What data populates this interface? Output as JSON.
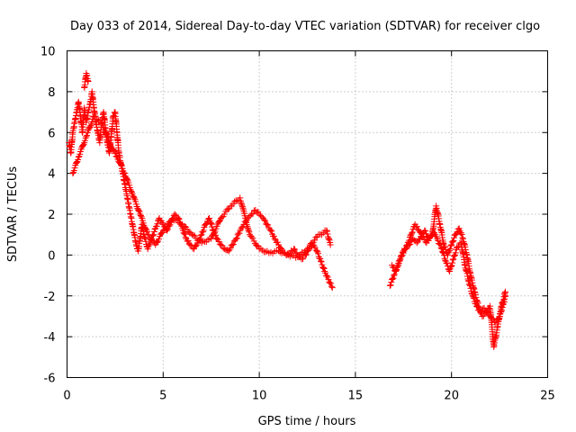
{
  "chart_data": {
    "type": "scatter",
    "title": "Day 033 of 2014, Sidereal Day-to-day VTEC variation (SDTVAR) for receiver clgo",
    "xlabel": "GPS time / hours",
    "ylabel": "SDTVAR / TECUs",
    "xlim": [
      0,
      25
    ],
    "ylim": [
      -6,
      10
    ],
    "xticks": [
      0,
      5,
      10,
      15,
      20,
      25
    ],
    "yticks": [
      -6,
      -4,
      -2,
      0,
      2,
      4,
      6,
      8,
      10
    ],
    "grid": true,
    "marker": "+",
    "color": "#ff0000",
    "series": [
      {
        "name": "SDTVAR",
        "segments": [
          {
            "x": [
              0.1,
              0.2,
              0.3,
              0.4,
              0.5,
              0.6,
              0.7,
              0.8,
              0.9,
              1.0,
              1.1,
              1.2,
              1.3,
              1.4,
              1.5,
              1.6,
              1.7,
              1.8,
              1.9,
              2.0,
              2.1,
              2.2,
              2.3,
              2.4,
              2.5,
              2.6,
              2.7,
              2.8,
              2.9,
              3.0,
              3.1,
              3.2,
              3.3,
              3.4,
              3.5,
              3.6,
              3.7,
              3.8,
              3.9,
              4.0,
              4.2,
              4.4,
              4.6,
              4.8,
              5.0,
              5.2,
              5.4,
              5.6,
              5.8,
              6.0,
              6.2,
              6.4,
              6.6,
              6.8,
              7.0,
              7.2,
              7.4,
              7.6,
              7.8,
              8.0,
              8.2,
              8.4,
              8.6,
              8.8,
              9.0,
              9.2,
              9.4,
              9.6,
              9.8,
              10.0,
              10.2,
              10.4,
              10.6,
              10.8,
              11.0,
              11.2,
              11.4,
              11.6,
              11.8,
              12.0,
              12.2,
              12.4,
              12.6,
              12.8,
              13.0,
              13.2,
              13.4,
              13.6,
              13.8
            ],
            "y": [
              5.5,
              5.0,
              6.0,
              6.5,
              7.0,
              7.5,
              6.8,
              6.0,
              7.2,
              6.5,
              7.0,
              7.4,
              8.0,
              7.2,
              6.5,
              6.0,
              5.5,
              6.5,
              7.0,
              6.2,
              5.5,
              5.0,
              5.8,
              6.8,
              7.0,
              6.0,
              5.0,
              4.5,
              4.0,
              3.5,
              3.0,
              2.5,
              2.0,
              1.5,
              1.0,
              0.5,
              0.2,
              0.8,
              1.5,
              1.0,
              0.3,
              0.8,
              1.3,
              1.8,
              1.5,
              1.2,
              1.6,
              2.0,
              1.8,
              1.3,
              0.8,
              0.5,
              0.3,
              0.6,
              1.0,
              1.5,
              1.8,
              1.2,
              0.8,
              0.5,
              0.3,
              0.2,
              0.5,
              0.8,
              1.2,
              1.5,
              1.8,
              2.0,
              2.2,
              2.0,
              1.8,
              1.5,
              1.2,
              0.8,
              0.5,
              0.2,
              0.0,
              0.1,
              0.3,
              0.0,
              -0.2,
              0.0,
              0.3,
              0.5,
              0.2,
              -0.3,
              -0.8,
              -1.2,
              -1.6
            ]
          },
          {
            "x": [
              0.3,
              0.6,
              1.0,
              1.4,
              1.8,
              2.2,
              2.6,
              3.0,
              3.4,
              3.8,
              4.2,
              4.6,
              5.0,
              5.5,
              6.0,
              6.5,
              7.0,
              7.5,
              8.0,
              8.5,
              9.0,
              9.5,
              10.0,
              10.5,
              11.0,
              11.5,
              12.0,
              12.5,
              13.0,
              13.5,
              13.7
            ],
            "y": [
              4.0,
              4.8,
              5.8,
              6.8,
              6.5,
              5.5,
              4.8,
              4.0,
              3.0,
              2.0,
              1.0,
              0.5,
              1.2,
              1.8,
              1.5,
              1.0,
              0.6,
              0.8,
              1.8,
              2.4,
              2.8,
              1.0,
              0.3,
              0.1,
              0.2,
              0.0,
              -0.1,
              0.3,
              0.9,
              1.2,
              0.5
            ]
          },
          {
            "x": [
              0.9,
              1.0,
              1.1
            ],
            "y": [
              8.2,
              8.9,
              8.5
            ]
          },
          {
            "x": [
              16.8,
              17.0,
              17.2,
              17.4,
              17.6,
              17.8,
              18.0,
              18.2,
              18.4,
              18.6,
              18.8,
              19.0,
              19.2,
              19.4,
              19.6,
              19.8,
              20.0,
              20.2,
              20.4,
              20.6,
              20.8,
              21.0,
              21.2,
              21.4,
              21.6,
              21.8,
              22.0,
              22.2,
              22.4,
              22.6,
              22.8
            ],
            "y": [
              -1.5,
              -1.0,
              -0.5,
              0.0,
              0.3,
              0.5,
              0.8,
              0.6,
              0.9,
              1.2,
              0.8,
              1.0,
              2.4,
              1.5,
              0.5,
              0.0,
              0.5,
              1.0,
              1.3,
              0.8,
              0.0,
              -1.0,
              -1.8,
              -2.5,
              -3.0,
              -2.8,
              -2.5,
              -4.5,
              -3.5,
              -2.5,
              -1.8
            ]
          },
          {
            "x": [
              16.9,
              17.1,
              17.3,
              17.5,
              17.7,
              17.9,
              18.1,
              18.3,
              18.5,
              18.7,
              18.9,
              19.1,
              19.3,
              19.5,
              19.7,
              19.9,
              20.1,
              20.3,
              20.5,
              20.7,
              20.9,
              21.1,
              21.3,
              21.5,
              21.7,
              21.9,
              22.1,
              22.3,
              22.5,
              22.7,
              22.8
            ],
            "y": [
              -0.5,
              -0.8,
              -0.3,
              0.2,
              0.5,
              1.0,
              1.5,
              1.2,
              0.9,
              0.6,
              0.9,
              1.1,
              0.7,
              0.3,
              -0.3,
              -0.8,
              -0.2,
              0.4,
              0.6,
              -0.5,
              -1.3,
              -2.0,
              -2.5,
              -2.8,
              -2.6,
              -2.9,
              -3.1,
              -3.3,
              -3.0,
              -2.4,
              -2.0
            ]
          }
        ]
      }
    ]
  }
}
